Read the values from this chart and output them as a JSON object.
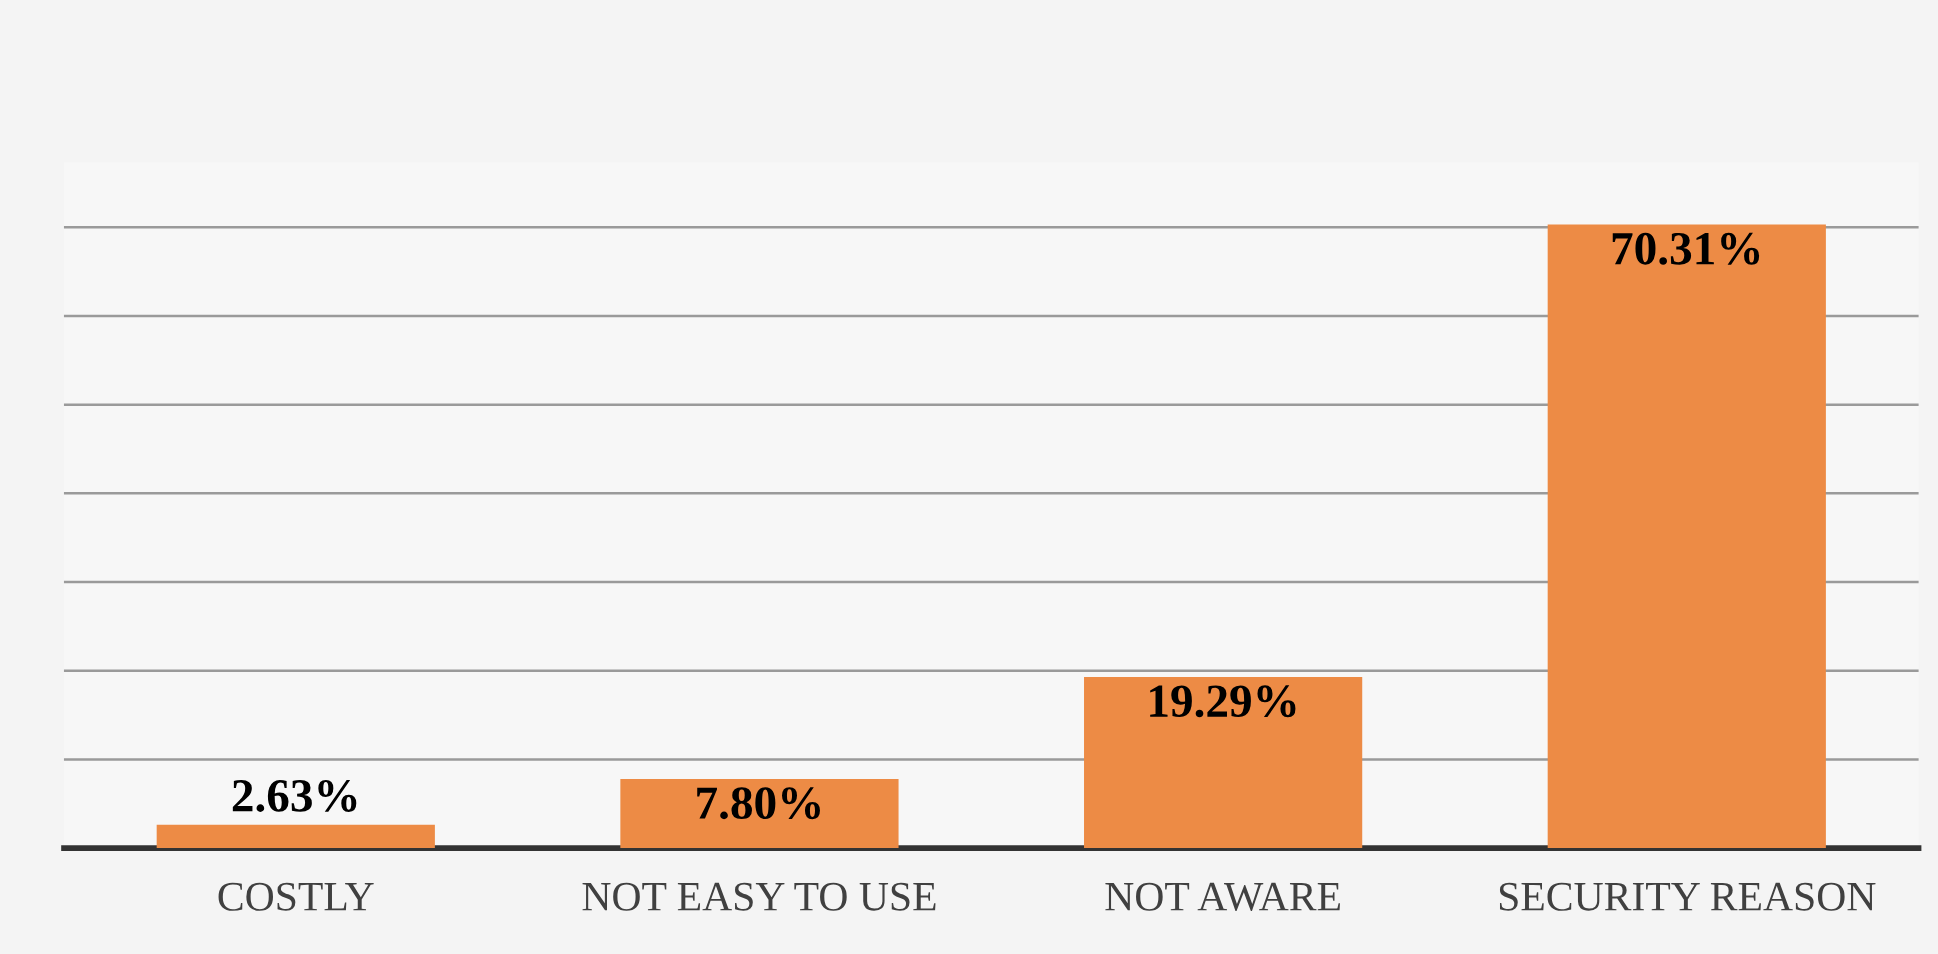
{
  "chart_data": {
    "type": "bar",
    "categories": [
      "COSTLY",
      "NOT EASY TO USE",
      "NOT AWARE",
      "SECURITY REASON"
    ],
    "values": [
      2.63,
      7.8,
      19.29,
      70.31
    ],
    "value_labels": [
      "2.63%",
      "7.80%",
      "19.29%",
      "70.31%"
    ],
    "color": "#ed8b45",
    "yticks": [
      {
        "value": 0,
        "label": null
      },
      {
        "value": 10,
        "label": null
      },
      {
        "value": 20,
        "label": null
      },
      {
        "value": 30,
        "label": null
      },
      {
        "value": 40,
        "label": null
      },
      {
        "value": 50,
        "label": null
      },
      {
        "value": 60,
        "label": null
      },
      {
        "value": 70,
        "label": null
      }
    ],
    "grid": "y",
    "legend": false
  }
}
